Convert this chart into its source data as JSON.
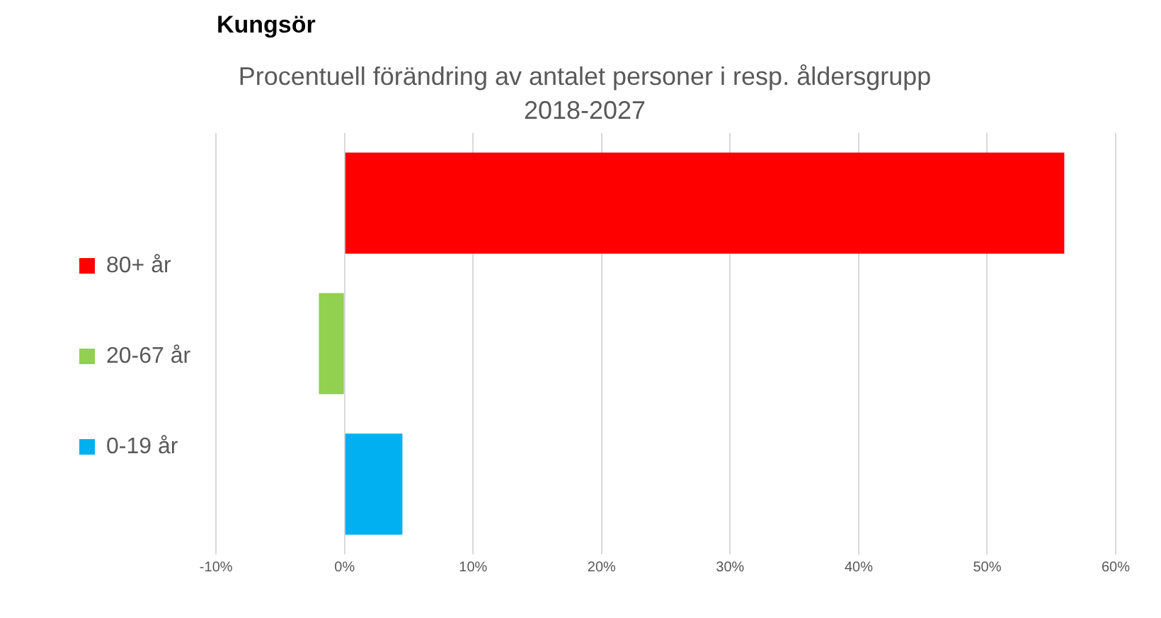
{
  "chart_data": {
    "type": "bar",
    "orientation": "horizontal",
    "title": "Kungsör",
    "subtitle": "Procentuell förändring av antalet personer i resp. åldersgrupp 2018-2027",
    "categories": [
      null,
      null,
      null
    ],
    "series": [
      {
        "name": "80+ år",
        "color": "#ff0000",
        "values": [
          56,
          null,
          null
        ]
      },
      {
        "name": "20-67 år",
        "color": "#92d050",
        "values": [
          null,
          -2,
          null
        ]
      },
      {
        "name": "0-19 år",
        "color": "#00b0f0",
        "values": [
          null,
          null,
          4.5
        ]
      }
    ],
    "xlim": [
      -10,
      60
    ],
    "xticks": [
      {
        "value": -10,
        "label": "-10%"
      },
      {
        "value": 0,
        "label": "0%"
      },
      {
        "value": 10,
        "label": "10%"
      },
      {
        "value": 20,
        "label": "20%"
      },
      {
        "value": 30,
        "label": "30%"
      },
      {
        "value": 40,
        "label": "40%"
      },
      {
        "value": 50,
        "label": "50%"
      },
      {
        "value": 60,
        "label": "60%"
      }
    ],
    "grid": "x",
    "legend": "left"
  }
}
